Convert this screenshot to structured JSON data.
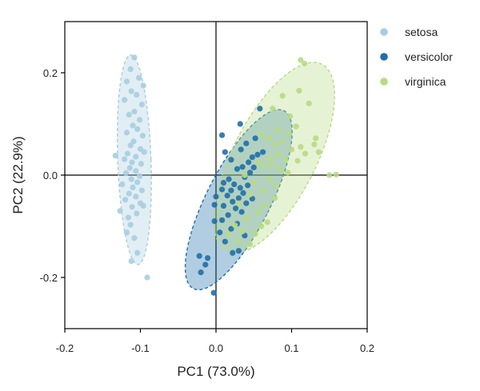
{
  "chart_data": {
    "type": "scatter",
    "title": "",
    "xlabel": "PC1 (73.0%)",
    "ylabel": "PC2 (22.9%)",
    "xlim": [
      -0.2,
      0.2
    ],
    "ylim": [
      -0.3,
      0.3
    ],
    "xticks": [
      -0.2,
      -0.1,
      0.0,
      0.1,
      0.2
    ],
    "xtick_labels": [
      "-0.2",
      "-0.1",
      "0.0",
      "0.1",
      "0.2"
    ],
    "yticks": [
      -0.2,
      0.0,
      0.2
    ],
    "ytick_labels": [
      "-0.2",
      "0.0",
      "0.2"
    ],
    "zero_lines": true,
    "legend_position": "top-right, outside plot",
    "series": [
      {
        "name": "setosa",
        "color": "#a8cde0",
        "ellipse": {
          "cx": -0.108,
          "cy": 0.03,
          "rx": 0.022,
          "ry": 0.205,
          "angle_deg": -2
        },
        "points": [
          [
            -0.108,
            0.23
          ],
          [
            -0.113,
            0.207
          ],
          [
            -0.102,
            0.19
          ],
          [
            -0.118,
            0.183
          ],
          [
            -0.096,
            0.175
          ],
          [
            -0.112,
            0.164
          ],
          [
            -0.105,
            0.157
          ],
          [
            -0.121,
            0.147
          ],
          [
            -0.098,
            0.138
          ],
          [
            -0.108,
            0.124
          ],
          [
            -0.115,
            0.118
          ],
          [
            -0.101,
            0.108
          ],
          [
            -0.11,
            0.097
          ],
          [
            -0.104,
            0.09
          ],
          [
            -0.118,
            0.083
          ],
          [
            -0.097,
            0.077
          ],
          [
            -0.109,
            0.066
          ],
          [
            -0.113,
            0.058
          ],
          [
            -0.1,
            0.051
          ],
          [
            -0.095,
            0.045
          ],
          [
            -0.117,
            0.042
          ],
          [
            -0.106,
            0.036
          ],
          [
            -0.133,
            0.038
          ],
          [
            -0.121,
            0.031
          ],
          [
            -0.111,
            0.025
          ],
          [
            -0.099,
            0.022
          ],
          [
            -0.114,
            0.014
          ],
          [
            -0.106,
            0.008
          ],
          [
            -0.119,
            0.004
          ],
          [
            -0.101,
            -0.002
          ],
          [
            -0.112,
            -0.008
          ],
          [
            -0.104,
            -0.014
          ],
          [
            -0.124,
            -0.018
          ],
          [
            -0.11,
            -0.024
          ],
          [
            -0.098,
            -0.03
          ],
          [
            -0.115,
            -0.036
          ],
          [
            -0.106,
            -0.042
          ],
          [
            -0.12,
            -0.048
          ],
          [
            -0.1,
            -0.055
          ],
          [
            -0.111,
            -0.062
          ],
          [
            -0.127,
            -0.07
          ],
          [
            -0.105,
            -0.075
          ],
          [
            -0.116,
            -0.083
          ],
          [
            -0.113,
            -0.097
          ],
          [
            -0.118,
            -0.112
          ],
          [
            -0.108,
            -0.123
          ],
          [
            -0.104,
            -0.152
          ],
          [
            -0.112,
            -0.168
          ],
          [
            -0.091,
            -0.2
          ],
          [
            -0.096,
            -0.06
          ]
        ]
      },
      {
        "name": "versicolor",
        "color": "#1f6fa8",
        "ellipse": {
          "cx": 0.03,
          "cy": -0.048,
          "rx": 0.042,
          "ry": 0.195,
          "angle_deg": 27
        },
        "points": [
          [
            0.058,
            0.13
          ],
          [
            0.032,
            0.1
          ],
          [
            0.008,
            0.078
          ],
          [
            0.052,
            0.072
          ],
          [
            0.04,
            0.062
          ],
          [
            0.033,
            0.05
          ],
          [
            0.012,
            0.045
          ],
          [
            0.055,
            0.04
          ],
          [
            0.062,
            0.045
          ],
          [
            0.048,
            0.035
          ],
          [
            0.02,
            0.03
          ],
          [
            0.043,
            0.025
          ],
          [
            0.035,
            0.016
          ],
          [
            0.05,
            0.015
          ],
          [
            0.028,
            0.012
          ],
          [
            0.045,
            0.005
          ],
          [
            0.038,
            -0.004
          ],
          [
            0.017,
            -0.008
          ],
          [
            0.01,
            -0.015
          ],
          [
            0.024,
            -0.018
          ],
          [
            0.042,
            -0.02
          ],
          [
            0.032,
            -0.025
          ],
          [
            0.008,
            -0.028
          ],
          [
            0.02,
            -0.03
          ],
          [
            0.036,
            -0.035
          ],
          [
            0.015,
            -0.04
          ],
          [
            0.0,
            -0.042
          ],
          [
            0.03,
            -0.045
          ],
          [
            0.048,
            -0.046
          ],
          [
            0.022,
            -0.052
          ],
          [
            0.04,
            -0.055
          ],
          [
            0.01,
            -0.06
          ],
          [
            -0.002,
            -0.058
          ],
          [
            0.026,
            -0.065
          ],
          [
            0.034,
            -0.072
          ],
          [
            0.016,
            -0.078
          ],
          [
            -0.002,
            -0.09
          ],
          [
            0.008,
            -0.088
          ],
          [
            0.028,
            -0.095
          ],
          [
            0.02,
            -0.105
          ],
          [
            0.005,
            -0.112
          ],
          [
            0.038,
            -0.118
          ],
          [
            0.012,
            -0.13
          ],
          [
            0.03,
            -0.148
          ],
          [
            0.022,
            -0.152
          ],
          [
            -0.022,
            -0.158
          ],
          [
            -0.011,
            -0.162
          ],
          [
            -0.014,
            -0.175
          ],
          [
            -0.02,
            -0.19
          ],
          [
            -0.003,
            -0.23
          ]
        ]
      },
      {
        "name": "virginica",
        "color": "#b7da84",
        "ellipse": {
          "cx": 0.077,
          "cy": 0.034,
          "rx": 0.055,
          "ry": 0.205,
          "angle_deg": 27
        },
        "points": [
          [
            0.112,
            0.225
          ],
          [
            0.117,
            0.218
          ],
          [
            0.11,
            0.165
          ],
          [
            0.088,
            0.155
          ],
          [
            0.123,
            0.14
          ],
          [
            0.075,
            0.13
          ],
          [
            0.098,
            0.115
          ],
          [
            0.106,
            0.095
          ],
          [
            0.082,
            0.088
          ],
          [
            0.096,
            0.082
          ],
          [
            0.06,
            0.08
          ],
          [
            0.132,
            0.072
          ],
          [
            0.07,
            0.072
          ],
          [
            0.088,
            0.065
          ],
          [
            0.078,
            0.06
          ],
          [
            0.13,
            0.06
          ],
          [
            0.112,
            0.055
          ],
          [
            0.1,
            0.05
          ],
          [
            0.136,
            0.045
          ],
          [
            0.118,
            0.042
          ],
          [
            0.082,
            0.04
          ],
          [
            0.092,
            0.03
          ],
          [
            0.071,
            0.032
          ],
          [
            0.108,
            0.028
          ],
          [
            0.056,
            0.025
          ],
          [
            0.074,
            0.02
          ],
          [
            0.064,
            0.018
          ],
          [
            0.085,
            0.012
          ],
          [
            0.095,
            0.005
          ],
          [
            0.159,
            0.001
          ],
          [
            0.038,
            0.0
          ],
          [
            0.07,
            -0.008
          ],
          [
            0.05,
            -0.015
          ],
          [
            0.08,
            -0.02
          ],
          [
            0.062,
            -0.03
          ],
          [
            0.045,
            -0.038
          ],
          [
            0.078,
            -0.045
          ],
          [
            0.065,
            -0.06
          ],
          [
            0.03,
            -0.055
          ],
          [
            0.055,
            -0.072
          ],
          [
            0.04,
            -0.085
          ],
          [
            0.068,
            -0.092
          ],
          [
            0.025,
            -0.098
          ],
          [
            0.035,
            -0.11
          ],
          [
            0.052,
            -0.115
          ],
          [
            0.03,
            -0.128
          ],
          [
            0.045,
            -0.135
          ],
          [
            0.06,
            -0.1
          ],
          [
            0.016,
            -0.115
          ],
          [
            0.15,
            0.0
          ]
        ]
      }
    ]
  }
}
